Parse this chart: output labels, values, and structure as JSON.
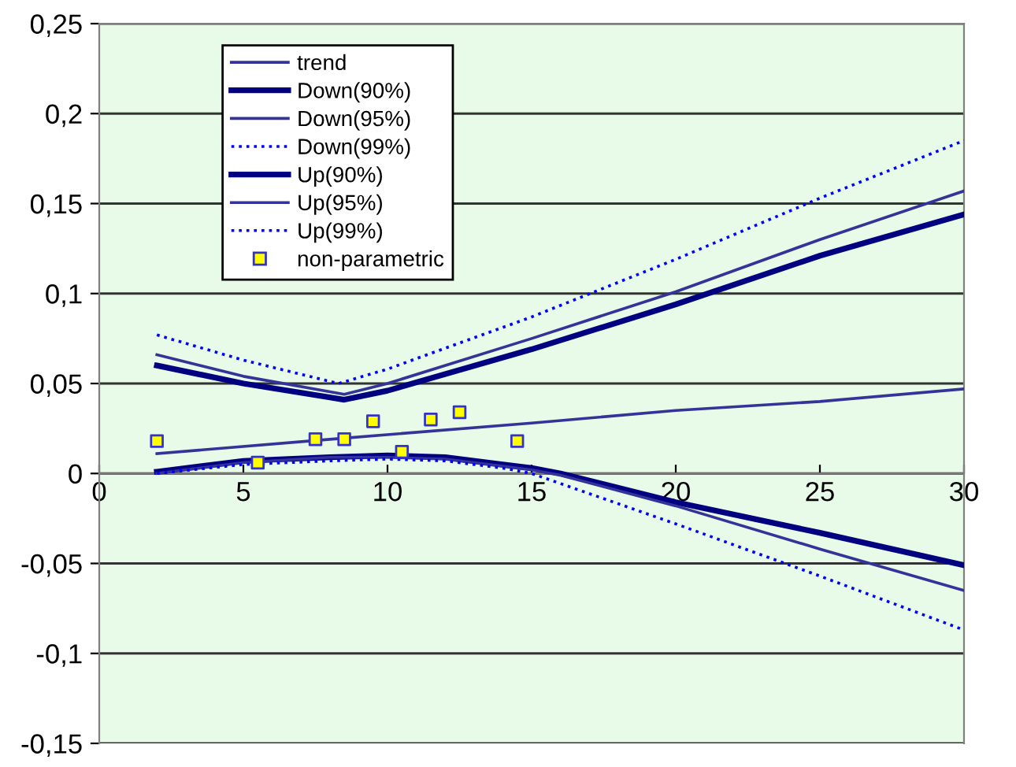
{
  "chart_data": {
    "type": "line",
    "xlim": [
      0,
      30
    ],
    "xticks": [
      0,
      5,
      10,
      15,
      20,
      25,
      30
    ],
    "ylim": [
      -0.15,
      0.25
    ],
    "yticks": [
      {
        "value": -0.15,
        "label": "-0,15"
      },
      {
        "value": -0.1,
        "label": "-0,1"
      },
      {
        "value": -0.05,
        "label": "-0,05"
      },
      {
        "value": 0,
        "label": "0"
      },
      {
        "value": 0.05,
        "label": "0,05"
      },
      {
        "value": 0.1,
        "label": "0,1"
      },
      {
        "value": 0.15,
        "label": "0,15"
      },
      {
        "value": 0.2,
        "label": "0,2"
      },
      {
        "value": 0.25,
        "label": "0,25"
      }
    ],
    "grid": "y",
    "legend": "top left",
    "marker": "none",
    "series": [
      {
        "name": "trend",
        "color": "#333399",
        "line_style": "solid",
        "x": [
          2,
          8,
          15,
          20,
          25,
          30
        ],
        "values": [
          0.011,
          0.019,
          0.028,
          0.035,
          0.04,
          0.047
        ]
      },
      {
        "name": "Down(90%)",
        "color": "#000080",
        "line_style": "solid",
        "x": [
          2,
          5,
          8,
          10,
          12,
          14,
          15,
          16,
          20,
          25,
          30
        ],
        "values": [
          0.001,
          0.007,
          0.009,
          0.01,
          0.009,
          0.005,
          0.003,
          0.0,
          -0.016,
          -0.033,
          -0.051
        ]
      },
      {
        "name": "Down(95%)",
        "color": "#333399",
        "line_style": "solid",
        "x": [
          2,
          5,
          8,
          10,
          12,
          14,
          15,
          16,
          20,
          25,
          30
        ],
        "values": [
          0.0,
          0.006,
          0.009,
          0.009,
          0.008,
          0.004,
          0.002,
          -0.001,
          -0.018,
          -0.042,
          -0.065
        ]
      },
      {
        "name": "Down(99%)",
        "color": "#0000ff",
        "line_style": "dotted",
        "x": [
          2,
          5,
          8,
          10,
          12,
          14,
          15,
          20,
          25,
          30
        ],
        "values": [
          0.0,
          0.005,
          0.007,
          0.008,
          0.007,
          0.003,
          0.0,
          -0.028,
          -0.057,
          -0.087
        ]
      },
      {
        "name": "Up(90%)",
        "color": "#000080",
        "line_style": "solid",
        "x": [
          2,
          5,
          8.5,
          10,
          15,
          20,
          25,
          30
        ],
        "values": [
          0.06,
          0.05,
          0.041,
          0.046,
          0.069,
          0.094,
          0.121,
          0.144
        ]
      },
      {
        "name": "Up(95%)",
        "color": "#333399",
        "line_style": "solid",
        "x": [
          2,
          5,
          8.5,
          10,
          15,
          20,
          25,
          30
        ],
        "values": [
          0.066,
          0.054,
          0.044,
          0.05,
          0.075,
          0.101,
          0.13,
          0.157
        ]
      },
      {
        "name": "Up(99%)",
        "color": "#0000ff",
        "line_style": "dotted",
        "x": [
          2,
          5,
          8.3,
          10,
          15,
          20,
          25,
          30
        ],
        "values": [
          0.077,
          0.063,
          0.05,
          0.058,
          0.087,
          0.119,
          0.153,
          0.185
        ]
      },
      {
        "name": "non-parametric",
        "type": "scatter",
        "marker": "square",
        "color": "#ffff00",
        "x": [
          2,
          5.5,
          7.5,
          8.5,
          9.5,
          10.5,
          11.5,
          12.5,
          14.5
        ],
        "values": [
          0.018,
          0.006,
          0.019,
          0.019,
          0.029,
          0.012,
          0.03,
          0.034,
          0.018
        ]
      }
    ]
  }
}
